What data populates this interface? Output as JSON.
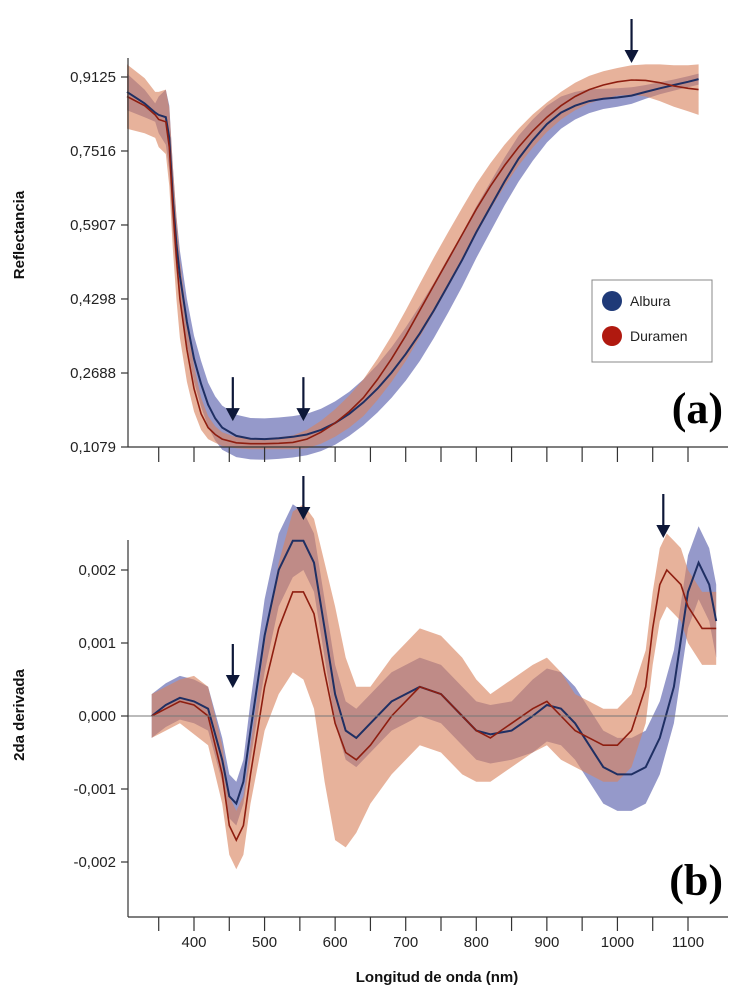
{
  "colors": {
    "albura": "#1f2f63",
    "albura_band": "#6c72b5",
    "duramen": "#8e1e10",
    "duramen_band": "#d9825e",
    "arrow": "#0d1738",
    "axis": "#333333"
  },
  "chart_data": [
    {
      "type": "line",
      "tag": "(a)",
      "ylabel": "Reflectancia",
      "xlabel": "",
      "xlim": [
        300,
        1140
      ],
      "ylim": [
        0.1079,
        0.95
      ],
      "x_ticks": [
        400,
        500,
        600,
        700,
        800,
        900,
        1000,
        1100
      ],
      "y_ticks": [
        0.1079,
        0.2688,
        0.4298,
        0.5907,
        0.7516,
        0.9125
      ],
      "y_tick_labels": [
        "0,1079",
        "0,2688",
        "0,4298",
        "0,5907",
        "0,7516",
        "0,9125"
      ],
      "grid": false,
      "legend": {
        "placement": "right",
        "items": [
          {
            "label": "Albura",
            "color": "#1f3a78"
          },
          {
            "label": "Duramen",
            "color": "#b0190f"
          }
        ]
      },
      "arrows_at_x": [
        455,
        555,
        1020
      ],
      "series": [
        {
          "name": "Albura",
          "x": [
            305,
            330,
            345,
            350,
            360,
            365,
            370,
            375,
            380,
            390,
            400,
            410,
            420,
            430,
            440,
            460,
            480,
            500,
            520,
            540,
            560,
            580,
            600,
            620,
            640,
            660,
            680,
            700,
            720,
            740,
            760,
            780,
            800,
            820,
            840,
            860,
            880,
            900,
            920,
            940,
            960,
            980,
            1000,
            1020,
            1040,
            1060,
            1080,
            1100,
            1115
          ],
          "y": [
            0.88,
            0.855,
            0.835,
            0.83,
            0.825,
            0.78,
            0.65,
            0.55,
            0.48,
            0.38,
            0.3,
            0.245,
            0.2,
            0.17,
            0.15,
            0.132,
            0.126,
            0.125,
            0.127,
            0.13,
            0.135,
            0.145,
            0.16,
            0.18,
            0.205,
            0.235,
            0.27,
            0.31,
            0.355,
            0.405,
            0.46,
            0.515,
            0.575,
            0.63,
            0.685,
            0.735,
            0.775,
            0.81,
            0.835,
            0.85,
            0.86,
            0.865,
            0.868,
            0.872,
            0.88,
            0.888,
            0.895,
            0.902,
            0.908
          ],
          "band": [
            0.04,
            0.03,
            0.02,
            0.04,
            0.06,
            0.07,
            0.07,
            0.06,
            0.055,
            0.05,
            0.05,
            0.05,
            0.048,
            0.048,
            0.048,
            0.046,
            0.045,
            0.045,
            0.045,
            0.045,
            0.045,
            0.046,
            0.047,
            0.048,
            0.05,
            0.052,
            0.055,
            0.058,
            0.06,
            0.06,
            0.06,
            0.058,
            0.056,
            0.054,
            0.052,
            0.05,
            0.045,
            0.04,
            0.035,
            0.03,
            0.026,
            0.022,
            0.02,
            0.018,
            0.015,
            0.013,
            0.012,
            0.012,
            0.012
          ]
        },
        {
          "name": "Duramen",
          "x": [
            305,
            330,
            345,
            350,
            360,
            365,
            370,
            375,
            380,
            390,
            400,
            410,
            420,
            430,
            440,
            460,
            480,
            500,
            520,
            540,
            560,
            580,
            600,
            620,
            640,
            660,
            680,
            700,
            720,
            740,
            760,
            780,
            800,
            820,
            840,
            860,
            880,
            900,
            920,
            940,
            960,
            980,
            1000,
            1020,
            1040,
            1060,
            1080,
            1100,
            1115
          ],
          "y": [
            0.87,
            0.85,
            0.83,
            0.82,
            0.815,
            0.76,
            0.63,
            0.52,
            0.43,
            0.32,
            0.235,
            0.18,
            0.15,
            0.135,
            0.125,
            0.117,
            0.115,
            0.115,
            0.116,
            0.118,
            0.125,
            0.14,
            0.16,
            0.185,
            0.215,
            0.255,
            0.3,
            0.35,
            0.405,
            0.46,
            0.515,
            0.57,
            0.625,
            0.675,
            0.72,
            0.76,
            0.795,
            0.825,
            0.85,
            0.87,
            0.885,
            0.895,
            0.902,
            0.906,
            0.905,
            0.9,
            0.893,
            0.888,
            0.885
          ],
          "band": [
            0.07,
            0.06,
            0.05,
            0.06,
            0.07,
            0.085,
            0.09,
            0.09,
            0.085,
            0.07,
            0.05,
            0.035,
            0.025,
            0.018,
            0.015,
            0.012,
            0.012,
            0.012,
            0.013,
            0.015,
            0.02,
            0.025,
            0.03,
            0.035,
            0.04,
            0.045,
            0.05,
            0.055,
            0.058,
            0.06,
            0.06,
            0.058,
            0.055,
            0.05,
            0.045,
            0.04,
            0.036,
            0.032,
            0.03,
            0.03,
            0.03,
            0.03,
            0.03,
            0.032,
            0.035,
            0.04,
            0.045,
            0.05,
            0.055
          ]
        }
      ]
    },
    {
      "type": "line",
      "tag": "(b)",
      "ylabel": "2da derivada",
      "xlabel": "Longitud de onda (nm)",
      "xlim": [
        300,
        1140
      ],
      "ylim": [
        -0.0028,
        0.0024
      ],
      "x_ticks": [
        400,
        500,
        600,
        700,
        800,
        900,
        1000,
        1100
      ],
      "y_ticks": [
        -0.002,
        -0.001,
        0.0,
        0.001,
        0.002
      ],
      "y_tick_labels": [
        "-0,002",
        "-0,001",
        "0,000",
        "0,001",
        "0,002"
      ],
      "zero_line": true,
      "grid": false,
      "arrows_at_x": [
        455,
        555,
        1065
      ],
      "series": [
        {
          "name": "Albura",
          "x": [
            340,
            360,
            380,
            400,
            420,
            440,
            450,
            460,
            470,
            480,
            500,
            520,
            540,
            555,
            570,
            585,
            600,
            615,
            630,
            650,
            680,
            720,
            750,
            780,
            800,
            820,
            850,
            880,
            900,
            920,
            940,
            960,
            980,
            1000,
            1020,
            1040,
            1060,
            1080,
            1100,
            1115,
            1130,
            1140
          ],
          "y": [
            0.0,
            0.00015,
            0.00025,
            0.0002,
            0.0001,
            -0.0006,
            -0.0011,
            -0.0012,
            -0.0009,
            -0.0002,
            0.0011,
            0.002,
            0.0024,
            0.0024,
            0.0021,
            0.0012,
            0.0003,
            -0.0002,
            -0.0003,
            -0.0001,
            0.0002,
            0.0004,
            0.0003,
            0.0,
            -0.0002,
            -0.00025,
            -0.0002,
            0.0,
            0.00015,
            0.0001,
            -0.0001,
            -0.0004,
            -0.0007,
            -0.0008,
            -0.0008,
            -0.0007,
            -0.0003,
            0.0004,
            0.0017,
            0.0021,
            0.0018,
            0.0013
          ],
          "band": [
            0.0003,
            0.0003,
            0.0003,
            0.0003,
            0.0003,
            0.0003,
            0.0003,
            0.0003,
            0.0003,
            0.0004,
            0.0005,
            0.0005,
            0.0005,
            0.0004,
            0.0004,
            0.0004,
            0.0004,
            0.0004,
            0.0004,
            0.0004,
            0.0004,
            0.0004,
            0.0004,
            0.0004,
            0.0004,
            0.0004,
            0.0004,
            0.0005,
            0.0005,
            0.0005,
            0.0005,
            0.0005,
            0.0005,
            0.0005,
            0.0005,
            0.0005,
            0.0005,
            0.0005,
            0.0005,
            0.0005,
            0.0005,
            0.0005
          ]
        },
        {
          "name": "Duramen",
          "x": [
            340,
            360,
            380,
            400,
            420,
            440,
            450,
            460,
            470,
            480,
            500,
            520,
            540,
            555,
            570,
            585,
            600,
            615,
            630,
            650,
            680,
            720,
            750,
            780,
            800,
            820,
            850,
            880,
            900,
            920,
            940,
            960,
            980,
            1000,
            1020,
            1040,
            1050,
            1060,
            1070,
            1080,
            1090,
            1100,
            1120,
            1140
          ],
          "y": [
            0.0,
            0.0001,
            0.0002,
            0.00015,
            0.0,
            -0.0008,
            -0.0015,
            -0.0017,
            -0.0015,
            -0.0008,
            0.0004,
            0.0012,
            0.0017,
            0.0017,
            0.0014,
            0.0006,
            -0.0001,
            -0.0005,
            -0.0006,
            -0.0004,
            0.0,
            0.0004,
            0.0003,
            0.0,
            -0.0002,
            -0.0003,
            -0.0001,
            0.0001,
            0.0002,
            0.0,
            -0.0002,
            -0.0003,
            -0.0004,
            -0.0004,
            -0.0002,
            0.0004,
            0.0012,
            0.0018,
            0.002,
            0.0019,
            0.0018,
            0.0015,
            0.0012,
            0.0012
          ],
          "band": [
            0.0003,
            0.0003,
            0.0003,
            0.0004,
            0.0004,
            0.0004,
            0.0004,
            0.0004,
            0.0004,
            0.0004,
            0.0006,
            0.0009,
            0.0011,
            0.0012,
            0.0013,
            0.0015,
            0.0016,
            0.0013,
            0.001,
            0.0008,
            0.0008,
            0.0008,
            0.0008,
            0.0008,
            0.0007,
            0.0006,
            0.0006,
            0.0006,
            0.0006,
            0.0006,
            0.0005,
            0.0005,
            0.0005,
            0.0005,
            0.0005,
            0.0005,
            0.0005,
            0.0005,
            0.0005,
            0.0005,
            0.0005,
            0.0005,
            0.0005,
            0.0005
          ]
        }
      ]
    }
  ]
}
